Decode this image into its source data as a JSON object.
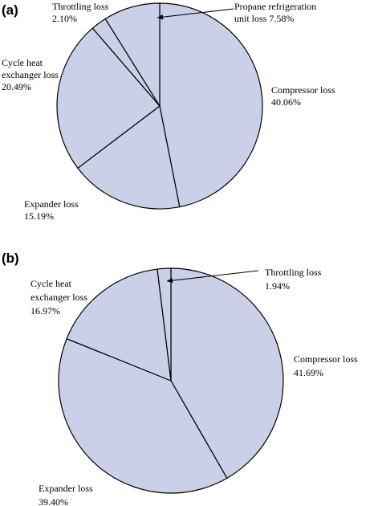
{
  "chart_data": [
    {
      "type": "pie",
      "panel_label": "(a)",
      "slices": [
        {
          "label_lines": [
            "Compressor loss",
            "40.06%"
          ],
          "value": 40.06
        },
        {
          "label_lines": [
            "Expander loss",
            "15.19%"
          ],
          "value": 15.19
        },
        {
          "label_lines": [
            "Cycle heat",
            "exchanger loss",
            "20.49%"
          ],
          "value": 20.49
        },
        {
          "label_lines": [
            "Throttling loss",
            "2.10%"
          ],
          "value": 2.1
        },
        {
          "label_lines": [
            "Propane refrigeration",
            "unit loss 7.58%"
          ],
          "value": 7.58
        }
      ],
      "fill_color": "#c9d0e8",
      "edge_color": "#000000"
    },
    {
      "type": "pie",
      "panel_label": "(b)",
      "slices": [
        {
          "label_lines": [
            "Compressor loss",
            "41.69%"
          ],
          "value": 41.69
        },
        {
          "label_lines": [
            "Expander loss",
            "39.40%"
          ],
          "value": 39.4
        },
        {
          "label_lines": [
            "Cycle heat",
            "exchanger loss",
            "16.97%"
          ],
          "value": 16.97
        },
        {
          "label_lines": [
            "Throttling loss",
            "1.94%"
          ],
          "value": 1.94
        }
      ],
      "fill_color": "#c9d0e8",
      "edge_color": "#000000"
    }
  ]
}
